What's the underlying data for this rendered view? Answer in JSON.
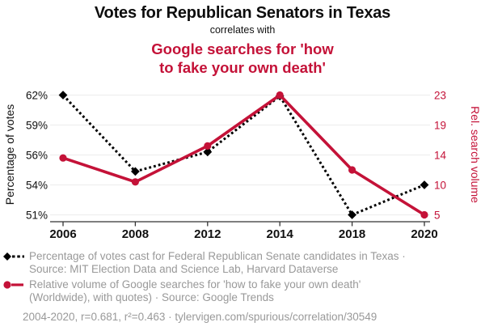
{
  "header": {
    "title": "Votes for Republican Senators in Texas",
    "connector": "correlates with",
    "subtitle_lines": [
      "Google searches for 'how",
      "to fake your own death'"
    ]
  },
  "colors": {
    "series_votes": "#000000",
    "series_search": "#c41238",
    "legend_text": "#999999",
    "gridline": "#efefef",
    "axis_line": "#333333",
    "tick_label": "#111111"
  },
  "chart_data": {
    "type": "line",
    "x_tick_labels": [
      "2006",
      "2008",
      "2012",
      "2014",
      "2018",
      "2020"
    ],
    "left_axis": {
      "label": "Percentage of votes",
      "tick_labels": [
        "62%",
        "59%",
        "56%",
        "54%",
        "51%"
      ],
      "tick_values": [
        62,
        59,
        56,
        54,
        51
      ]
    },
    "right_axis": {
      "label": "Rel. search volume",
      "tick_labels": [
        "23",
        "19",
        "14",
        "10",
        "5"
      ],
      "tick_values": [
        23,
        19,
        14,
        10,
        5
      ]
    },
    "series": [
      {
        "name": "votes-republican-senate-texas",
        "axis": "left",
        "line_style": "dotted",
        "marker": "diamond",
        "x": [
          2006,
          2008,
          2012,
          2014,
          2018,
          2020
        ],
        "values": [
          62,
          54.9,
          56.3,
          61.9,
          51,
          54
        ]
      },
      {
        "name": "google-searches-fake-your-own-death",
        "axis": "right",
        "line_style": "solid",
        "marker": "circle",
        "x": [
          2006,
          2008,
          2012,
          2014,
          2018,
          2020
        ],
        "values": [
          13.6,
          10.4,
          15.5,
          23,
          12,
          5
        ]
      }
    ]
  },
  "legend": {
    "items": [
      {
        "marker": "black-diamond-dotted-line",
        "lines": [
          "Percentage of votes cast for Federal Republican Senate candidates in Texas ·",
          "Source: MIT Election Data and Science Lab, Harvard Dataverse"
        ]
      },
      {
        "marker": "red-circle-solid-line",
        "lines": [
          "Relative volume of Google searches for 'how to fake your own death'",
          "(Worldwide), with quotes) · Source: Google Trends"
        ]
      }
    ],
    "footer": "2004-2020, r=0.681, r²=0.463 · tylervigen.com/spurious/correlation/30549"
  }
}
